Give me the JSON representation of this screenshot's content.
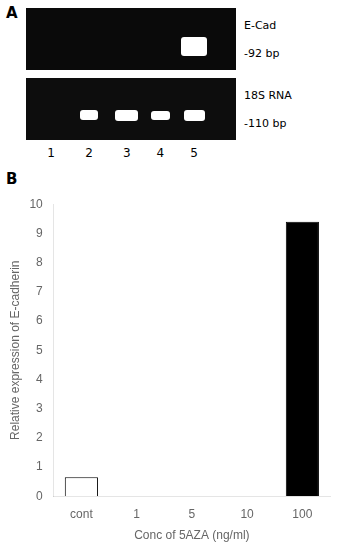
{
  "chart_data": {
    "type": "bar",
    "categories": [
      "cont",
      "1",
      "5",
      "10",
      "100"
    ],
    "values": [
      0.65,
      0.0,
      0.0,
      0.0,
      9.4
    ],
    "colors": [
      "#ffffff",
      "#000000",
      "#000000",
      "#000000",
      "#000000"
    ],
    "xlabel": "Conc of 5AZA (ng/ml)",
    "ylabel": "Relative expression of E-cadherin",
    "ylim": [
      0,
      10
    ],
    "yticks": [
      0,
      1,
      2,
      3,
      4,
      5,
      6,
      7,
      8,
      9,
      10
    ],
    "grid": false,
    "annotations": [
      "A",
      "E-Cad",
      "-92 bp",
      "18S RNA",
      "-110 bp",
      "1",
      "2",
      "3",
      "4",
      "5",
      "B"
    ]
  }
}
